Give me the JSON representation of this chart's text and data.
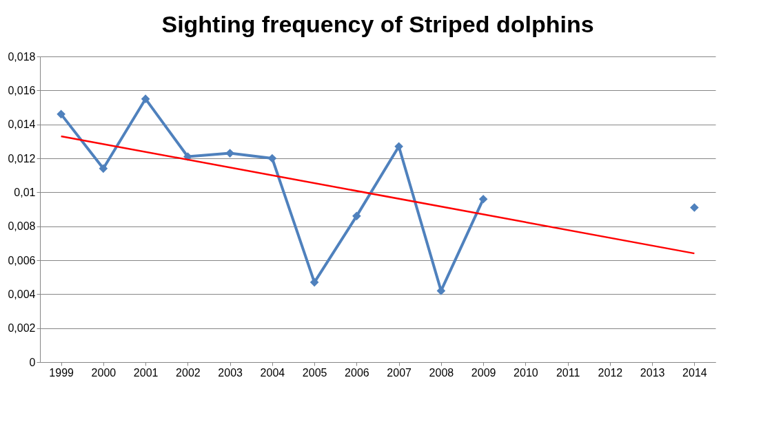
{
  "chart_data": {
    "type": "line",
    "title": "Sighting frequency of Striped dolphins",
    "categories": [
      "1999",
      "2000",
      "2001",
      "2002",
      "2003",
      "2004",
      "2005",
      "2006",
      "2007",
      "2008",
      "2009",
      "2010",
      "2011",
      "2012",
      "2013",
      "2014"
    ],
    "series": [
      {
        "color": "#4f81bd",
        "marker": "diamond",
        "values": [
          0.0146,
          0.0114,
          0.0155,
          0.0121,
          0.0123,
          0.012,
          0.0047,
          0.0086,
          0.0127,
          0.0042,
          0.0096,
          null,
          null,
          null,
          null,
          0.0091
        ]
      },
      {
        "color": "#ff0000",
        "marker": "none",
        "values": [
          0.0133,
          null,
          null,
          null,
          null,
          null,
          null,
          null,
          null,
          null,
          null,
          null,
          null,
          null,
          null,
          0.0064
        ]
      }
    ],
    "ylim": [
      0,
      0.018
    ],
    "yticks": [
      0,
      {
        "value": 0.002,
        "label": "0,002"
      },
      {
        "value": 0.004,
        "label": "0,004"
      },
      {
        "value": 0.006,
        "label": "0,006"
      },
      {
        "value": 0.008,
        "label": "0,008"
      },
      {
        "value": 0.01,
        "label": "0,01"
      },
      {
        "value": 0.012,
        "label": "0,012"
      },
      {
        "value": 0.014,
        "label": "0,014"
      },
      {
        "value": 0.016,
        "label": "0,016"
      },
      {
        "value": 0.018,
        "label": "0,018"
      }
    ],
    "grid": "y"
  }
}
